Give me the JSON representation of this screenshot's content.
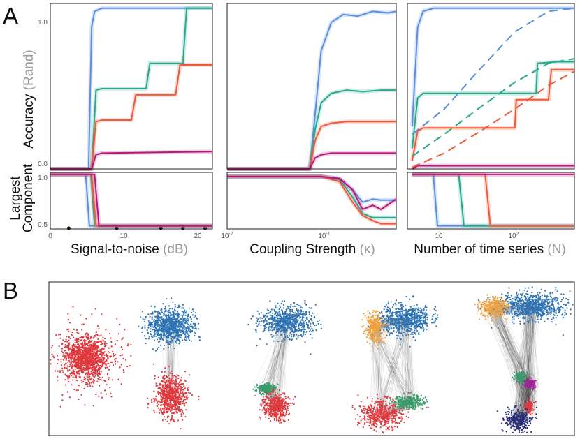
{
  "panel_labels": {
    "a": "A",
    "b": "B"
  },
  "colors": {
    "blue": "#5b8fdd",
    "teal": "#2aa88e",
    "orange": "#ee5a3a",
    "magenta": "#b5177a",
    "net_red": "#e0393e",
    "net_blue": "#2f74b5",
    "net_orange": "#f0a13a",
    "net_green": "#3a9a6a",
    "net_navy": "#2a2f7a",
    "net_purple": "#a0219a"
  },
  "labels": {
    "ylabel_top": "Accuracy",
    "ylabel_top_grey": "(Rand)",
    "ylabel_bottom_1": "Largest",
    "ylabel_bottom_2": "Component",
    "xlabel_1": "Signal-to-noise",
    "xlabel_1_grey": "(dB)",
    "xlabel_2": "Coupling Strength",
    "xlabel_2_grey": "(κ)",
    "xlabel_3": "Number of time series",
    "xlabel_3_grey": "(N)"
  },
  "ticks": {
    "acc_1": "1.0",
    "acc_0": "0.0",
    "lc_1": "1.0",
    "lc_05": "0.5",
    "snr": [
      "0",
      "10",
      "20"
    ],
    "kappa": [
      {
        "base": "10",
        "exp": "-2"
      },
      {
        "base": "10",
        "exp": "-1"
      }
    ],
    "n": [
      {
        "base": "10",
        "exp": "1"
      },
      {
        "base": "10",
        "exp": "2"
      }
    ]
  },
  "chart_data": [
    {
      "type": "line",
      "panel": "A-1 top",
      "xlabel": "Signal-to-noise (dB)",
      "ylabel": "Accuracy (Rand)",
      "xlim": [
        0,
        22
      ],
      "ylim": [
        0,
        1.05
      ],
      "markers_x": [
        2.5,
        9,
        15,
        18,
        21
      ],
      "series": [
        {
          "color": "blue",
          "x": [
            0,
            5.2,
            5.6,
            6.0,
            7,
            10,
            15,
            20,
            22
          ],
          "y": [
            0,
            0,
            0.9,
            1.0,
            1.02,
            1.02,
            1.02,
            1.02,
            1.02
          ]
        },
        {
          "color": "teal",
          "x": [
            0,
            5.6,
            6.2,
            7,
            10,
            13,
            13.5,
            18,
            18.5,
            22
          ],
          "y": [
            0,
            0,
            0.5,
            0.51,
            0.51,
            0.51,
            0.67,
            0.67,
            1.02,
            1.02
          ]
        },
        {
          "color": "orange",
          "x": [
            0,
            5.6,
            6.2,
            7,
            11,
            11.6,
            17,
            17.6,
            22
          ],
          "y": [
            0,
            0,
            0.3,
            0.31,
            0.31,
            0.47,
            0.47,
            0.66,
            0.66
          ]
        },
        {
          "color": "magenta",
          "x": [
            0,
            5.6,
            6.2,
            7,
            22
          ],
          "y": [
            0,
            0,
            0.09,
            0.1,
            0.11
          ]
        }
      ]
    },
    {
      "type": "line",
      "panel": "A-2 top",
      "xlabel": "Coupling Strength (κ)",
      "xscale": "log",
      "xlim": [
        0.01,
        0.42
      ],
      "ylim": [
        0,
        1.05
      ],
      "series": [
        {
          "color": "blue",
          "x": [
            0.01,
            0.062,
            0.07,
            0.08,
            0.1,
            0.13,
            0.18,
            0.25,
            0.35,
            0.42
          ],
          "y": [
            0,
            0,
            0.35,
            0.75,
            0.93,
            0.98,
            0.97,
            1.0,
            0.99,
            1.0
          ]
        },
        {
          "color": "teal",
          "x": [
            0.01,
            0.062,
            0.07,
            0.08,
            0.1,
            0.14,
            0.2,
            0.3,
            0.42
          ],
          "y": [
            0,
            0,
            0.25,
            0.42,
            0.48,
            0.5,
            0.49,
            0.5,
            0.5
          ]
        },
        {
          "color": "orange",
          "x": [
            0.01,
            0.062,
            0.07,
            0.08,
            0.1,
            0.14,
            0.2,
            0.3,
            0.42
          ],
          "y": [
            0,
            0,
            0.18,
            0.27,
            0.29,
            0.3,
            0.3,
            0.3,
            0.3
          ]
        },
        {
          "color": "magenta",
          "x": [
            0.01,
            0.062,
            0.07,
            0.08,
            0.1,
            0.14,
            0.2,
            0.42
          ],
          "y": [
            0,
            0,
            0.07,
            0.09,
            0.1,
            0.1,
            0.1,
            0.1
          ]
        }
      ]
    },
    {
      "type": "line",
      "panel": "A-3 top",
      "xlabel": "Number of time series (N)",
      "xscale": "log",
      "xlim": [
        3,
        700
      ],
      "ylim": [
        0,
        1.05
      ],
      "series": [
        {
          "color": "blue",
          "x": [
            3.5,
            4.2,
            5,
            7,
            10,
            30,
            100,
            700
          ],
          "y": [
            0.27,
            0.9,
            1.0,
            1.02,
            1.02,
            1.02,
            1.02,
            1.02
          ]
        },
        {
          "color": "teal",
          "x": [
            3.5,
            4.2,
            5,
            10,
            50,
            200,
            210,
            400,
            700
          ],
          "y": [
            0.13,
            0.45,
            0.48,
            0.48,
            0.48,
            0.48,
            0.67,
            0.68,
            0.68
          ]
        },
        {
          "color": "orange",
          "x": [
            3.5,
            4.2,
            5,
            10,
            50,
            100,
            105,
            300,
            330,
            700
          ],
          "y": [
            0.05,
            0.24,
            0.26,
            0.26,
            0.26,
            0.26,
            0.44,
            0.44,
            0.63,
            0.63
          ]
        },
        {
          "color": "magenta",
          "x": [
            3.5,
            4.2,
            700
          ],
          "y": [
            0.0,
            0.02,
            0.02
          ]
        },
        {
          "color": "blue",
          "dashed": true,
          "x": [
            3.5,
            10,
            30,
            100,
            300,
            700
          ],
          "y": [
            0.22,
            0.38,
            0.62,
            0.87,
            1.0,
            1.02
          ]
        },
        {
          "color": "teal",
          "dashed": true,
          "x": [
            3.5,
            10,
            30,
            100,
            300,
            700
          ],
          "y": [
            0.08,
            0.22,
            0.38,
            0.55,
            0.67,
            0.7
          ]
        },
        {
          "color": "orange",
          "dashed": true,
          "x": [
            3.5,
            10,
            30,
            100,
            300,
            700
          ],
          "y": [
            0.01,
            0.1,
            0.23,
            0.38,
            0.53,
            0.62
          ]
        }
      ]
    },
    {
      "type": "line",
      "panel": "A-1 bottom",
      "ylabel": "Largest Component",
      "xlim": [
        0,
        22
      ],
      "ylim": [
        0.47,
        1.02
      ],
      "series": [
        {
          "color": "blue",
          "x": [
            0,
            4.8,
            5.3,
            22
          ],
          "y": [
            1,
            1,
            0.5,
            0.5
          ]
        },
        {
          "color": "teal",
          "x": [
            0,
            5.5,
            6.0,
            22
          ],
          "y": [
            1,
            1,
            0.5,
            0.5
          ]
        },
        {
          "color": "orange",
          "x": [
            0,
            5.6,
            6.2,
            22
          ],
          "y": [
            1,
            1,
            0.5,
            0.5
          ]
        },
        {
          "color": "magenta",
          "x": [
            0,
            6.0,
            6.6,
            22
          ],
          "y": [
            1,
            1,
            0.5,
            0.5
          ]
        }
      ]
    },
    {
      "type": "line",
      "panel": "A-2 bottom",
      "xscale": "log",
      "xlim": [
        0.01,
        0.42
      ],
      "ylim": [
        0.47,
        1.02
      ],
      "series": [
        {
          "color": "blue",
          "x": [
            0.01,
            0.08,
            0.12,
            0.16,
            0.2,
            0.25,
            0.3,
            0.42
          ],
          "y": [
            0.98,
            0.98,
            0.96,
            0.85,
            0.73,
            0.76,
            0.75,
            0.75
          ]
        },
        {
          "color": "teal",
          "x": [
            0.01,
            0.08,
            0.12,
            0.16,
            0.2,
            0.25,
            0.3,
            0.42
          ],
          "y": [
            0.98,
            0.98,
            0.95,
            0.78,
            0.62,
            0.58,
            0.58,
            0.58
          ]
        },
        {
          "color": "orange",
          "x": [
            0.01,
            0.08,
            0.12,
            0.16,
            0.2,
            0.25,
            0.3,
            0.42
          ],
          "y": [
            0.98,
            0.98,
            0.93,
            0.73,
            0.6,
            0.55,
            0.52,
            0.52
          ]
        },
        {
          "color": "magenta",
          "x": [
            0.01,
            0.08,
            0.12,
            0.16,
            0.2,
            0.25,
            0.3,
            0.42
          ],
          "y": [
            0.98,
            0.98,
            0.96,
            0.85,
            0.66,
            0.7,
            0.66,
            0.76
          ]
        }
      ]
    },
    {
      "type": "line",
      "panel": "A-3 bottom",
      "xscale": "log",
      "xlim": [
        3,
        700
      ],
      "ylim": [
        0.47,
        1.02
      ],
      "series": [
        {
          "color": "blue",
          "x": [
            3.5,
            7,
            8,
            700
          ],
          "y": [
            1,
            1,
            0.5,
            0.5
          ]
        },
        {
          "color": "teal",
          "x": [
            3.5,
            16,
            19,
            700
          ],
          "y": [
            1,
            1,
            0.5,
            0.5
          ]
        },
        {
          "color": "orange",
          "x": [
            3.5,
            38,
            45,
            700
          ],
          "y": [
            1,
            1,
            0.5,
            0.5
          ]
        },
        {
          "color": "magenta",
          "x": [
            3.5,
            700
          ],
          "y": [
            1,
            1
          ]
        }
      ]
    }
  ],
  "networks": [
    {
      "clusters": [
        {
          "color": "net_red",
          "n": 1400,
          "spread": 14,
          "scatter": true
        }
      ]
    },
    {
      "clusters": [
        {
          "color": "net_blue",
          "n": 900,
          "spread": 13
        },
        {
          "color": "net_red",
          "n": 700,
          "spread": 11
        }
      ]
    },
    {
      "clusters": [
        {
          "color": "net_blue",
          "n": 700,
          "spread": 12
        },
        {
          "color": "net_green",
          "n": 250,
          "spread": 6
        },
        {
          "color": "net_red",
          "n": 450,
          "spread": 9
        }
      ]
    },
    {
      "clusters": [
        {
          "color": "net_blue",
          "n": 700,
          "spread": 12
        },
        {
          "color": "net_orange",
          "n": 300,
          "spread": 8
        },
        {
          "color": "net_red",
          "n": 500,
          "spread": 10
        },
        {
          "color": "net_green",
          "n": 300,
          "spread": 8
        }
      ]
    },
    {
      "clusters": [
        {
          "color": "net_blue",
          "n": 800,
          "spread": 12
        },
        {
          "color": "net_orange",
          "n": 300,
          "spread": 8
        },
        {
          "color": "net_green",
          "n": 120,
          "spread": 4
        },
        {
          "color": "net_purple",
          "n": 100,
          "spread": 4
        },
        {
          "color": "net_red",
          "n": 120,
          "spread": 4
        },
        {
          "color": "net_navy",
          "n": 300,
          "spread": 7
        }
      ]
    }
  ]
}
